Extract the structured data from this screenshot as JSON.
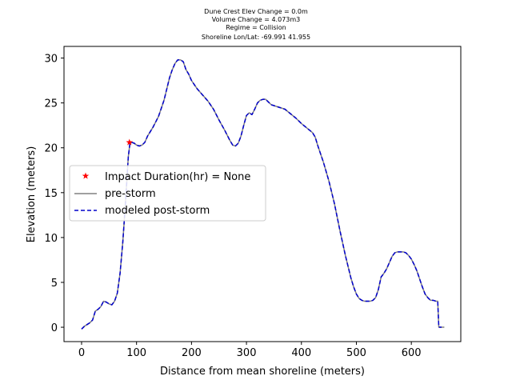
{
  "chart_data": {
    "type": "line",
    "title_lines": [
      "Dune Crest Elev Change = 0.0m",
      "Volume Change = 4.073m3",
      "Regime = Collision",
      "Shoreline Lon/Lat: -69.991 41.955"
    ],
    "xlabel": "Distance from mean shoreline (meters)",
    "ylabel": "Elevation (meters)",
    "xlim": [
      -32,
      690
    ],
    "ylim": [
      -1.6,
      31.3
    ],
    "xticks": [
      0,
      100,
      200,
      300,
      400,
      500,
      600
    ],
    "yticks": [
      0,
      5,
      10,
      15,
      20,
      25,
      30
    ],
    "grid": false,
    "legend_location": "center-left",
    "legend": [
      {
        "label": "Impact Duration(hr) = None",
        "marker": "star",
        "color": "#ff0000"
      },
      {
        "label": "pre-storm",
        "style": "solid",
        "color": "#808080"
      },
      {
        "label": "modeled post-storm",
        "style": "dashed",
        "color": "#0000cc"
      }
    ],
    "impact_point": {
      "x": 87,
      "y": 20.6
    },
    "series": [
      {
        "name": "pre-storm",
        "color": "#808080",
        "style": "solid",
        "x": [
          0,
          5,
          10,
          15,
          20,
          25,
          30,
          35,
          40,
          45,
          50,
          55,
          60,
          65,
          70,
          75,
          80,
          85,
          88,
          92,
          96,
          100,
          105,
          110,
          115,
          120,
          125,
          130,
          140,
          150,
          160,
          165,
          170,
          175,
          180,
          185,
          190,
          195,
          200,
          210,
          220,
          230,
          240,
          250,
          260,
          270,
          275,
          280,
          285,
          290,
          295,
          300,
          305,
          310,
          315,
          320,
          325,
          330,
          335,
          340,
          345,
          350,
          360,
          370,
          380,
          390,
          400,
          410,
          420,
          425,
          430,
          440,
          450,
          460,
          470,
          480,
          490,
          495,
          500,
          505,
          510,
          515,
          520,
          525,
          530,
          535,
          540,
          545,
          550,
          555,
          560,
          565,
          570,
          575,
          580,
          585,
          590,
          595,
          600,
          605,
          610,
          615,
          620,
          625,
          630,
          635,
          640,
          645,
          648,
          650,
          655,
          660
        ],
        "y": [
          -0.2,
          0.1,
          0.3,
          0.5,
          0.8,
          1.8,
          2.0,
          2.3,
          2.9,
          2.8,
          2.6,
          2.5,
          2.9,
          3.8,
          6.0,
          9.5,
          14.0,
          19.0,
          20.5,
          20.6,
          20.5,
          20.3,
          20.2,
          20.3,
          20.6,
          21.3,
          21.8,
          22.3,
          23.5,
          25.3,
          27.8,
          28.7,
          29.4,
          29.8,
          29.8,
          29.6,
          28.7,
          28.2,
          27.5,
          26.6,
          25.9,
          25.2,
          24.3,
          23.1,
          22.0,
          20.8,
          20.3,
          20.2,
          20.5,
          21.3,
          22.5,
          23.6,
          23.9,
          23.7,
          24.3,
          25.0,
          25.3,
          25.4,
          25.4,
          25.1,
          24.8,
          24.7,
          24.5,
          24.3,
          23.8,
          23.3,
          22.7,
          22.2,
          21.7,
          21.2,
          20.2,
          18.4,
          16.3,
          13.8,
          10.8,
          8.0,
          5.5,
          4.5,
          3.7,
          3.2,
          3.0,
          2.9,
          2.9,
          2.9,
          3.0,
          3.3,
          4.2,
          5.6,
          6.0,
          6.5,
          7.2,
          7.9,
          8.3,
          8.4,
          8.4,
          8.4,
          8.3,
          8.0,
          7.6,
          7.0,
          6.3,
          5.4,
          4.5,
          3.7,
          3.3,
          3.0,
          3.0,
          2.9,
          2.9,
          0.0,
          0.0,
          0.0
        ]
      },
      {
        "name": "modeled post-storm",
        "color": "#0000cc",
        "style": "dashed",
        "x": [
          0,
          5,
          10,
          15,
          20,
          25,
          30,
          35,
          40,
          45,
          50,
          55,
          60,
          65,
          70,
          75,
          80,
          85,
          88,
          92,
          96,
          100,
          105,
          110,
          115,
          120,
          125,
          130,
          140,
          150,
          160,
          165,
          170,
          175,
          180,
          185,
          190,
          195,
          200,
          210,
          220,
          230,
          240,
          250,
          260,
          270,
          275,
          280,
          285,
          290,
          295,
          300,
          305,
          310,
          315,
          320,
          325,
          330,
          335,
          340,
          345,
          350,
          360,
          370,
          380,
          390,
          400,
          410,
          420,
          425,
          430,
          440,
          450,
          460,
          470,
          480,
          490,
          495,
          500,
          505,
          510,
          515,
          520,
          525,
          530,
          535,
          540,
          545,
          550,
          555,
          560,
          565,
          570,
          575,
          580,
          585,
          590,
          595,
          600,
          605,
          610,
          615,
          620,
          625,
          630,
          635,
          640,
          645,
          648,
          650,
          655
        ],
        "y": [
          -0.2,
          0.1,
          0.3,
          0.5,
          0.8,
          1.8,
          2.0,
          2.3,
          2.9,
          2.8,
          2.6,
          2.5,
          2.9,
          3.8,
          6.0,
          9.5,
          14.0,
          19.0,
          20.5,
          20.6,
          20.5,
          20.3,
          20.2,
          20.3,
          20.6,
          21.3,
          21.8,
          22.3,
          23.5,
          25.3,
          27.8,
          28.7,
          29.4,
          29.8,
          29.8,
          29.6,
          28.7,
          28.2,
          27.5,
          26.6,
          25.9,
          25.2,
          24.3,
          23.1,
          22.0,
          20.8,
          20.3,
          20.2,
          20.5,
          21.3,
          22.5,
          23.6,
          23.9,
          23.7,
          24.3,
          25.0,
          25.3,
          25.4,
          25.4,
          25.1,
          24.8,
          24.7,
          24.5,
          24.3,
          23.8,
          23.3,
          22.7,
          22.2,
          21.7,
          21.2,
          20.2,
          18.4,
          16.3,
          13.8,
          10.8,
          8.0,
          5.5,
          4.5,
          3.7,
          3.2,
          3.0,
          2.9,
          2.9,
          2.9,
          3.0,
          3.3,
          4.2,
          5.6,
          6.0,
          6.5,
          7.2,
          7.9,
          8.3,
          8.4,
          8.4,
          8.4,
          8.3,
          8.0,
          7.6,
          7.0,
          6.3,
          5.4,
          4.5,
          3.7,
          3.3,
          3.0,
          3.0,
          2.9,
          2.9,
          0.0,
          0.0
        ]
      }
    ]
  }
}
